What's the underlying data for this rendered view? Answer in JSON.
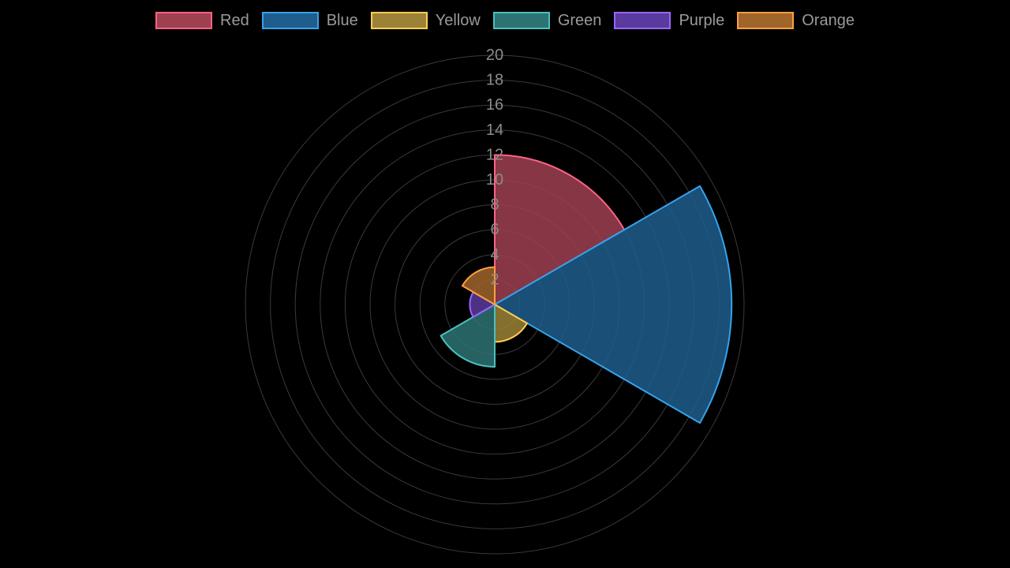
{
  "chart_data": {
    "type": "polarArea",
    "title": "",
    "categories": [
      "Red",
      "Blue",
      "Yellow",
      "Green",
      "Purple",
      "Orange"
    ],
    "values": [
      12,
      19,
      3,
      5,
      2,
      3
    ],
    "rlim": [
      0,
      20
    ],
    "r_ticks": [
      "2",
      "4",
      "6",
      "8",
      "10",
      "12",
      "14",
      "16",
      "18",
      "20"
    ],
    "grid": true,
    "legend_position": "top",
    "colors": {
      "fill": [
        "#9e4050",
        "#1f5d8c",
        "#9c8236",
        "#2d7373",
        "#5a3a9e",
        "#a0652a"
      ],
      "border": [
        "#ff6384",
        "#36a2eb",
        "#ffcd56",
        "#4bc0c0",
        "#9966ff",
        "#ff9f40"
      ],
      "grid": "#3a3a3a",
      "background": "#000000"
    }
  }
}
